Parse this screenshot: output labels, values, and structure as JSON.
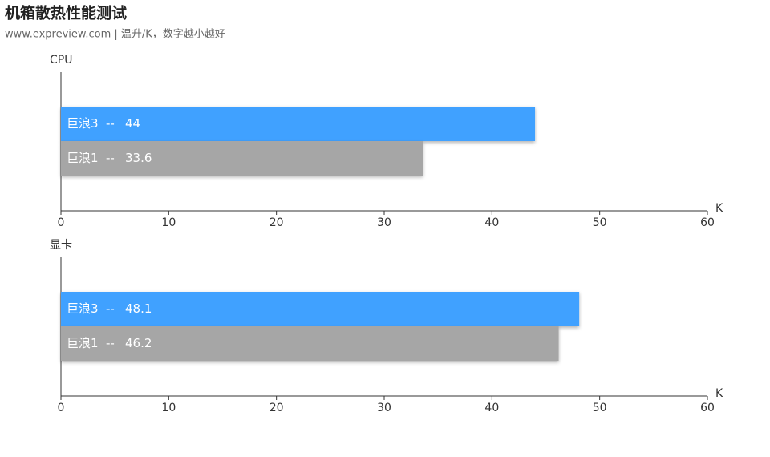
{
  "title": "机箱散热性能测试",
  "subtitle": "www.expreview.com | 温升/K，数字越小越好",
  "chart_data": [
    {
      "type": "barh",
      "title": "CPU",
      "xlabel": "K",
      "label_separator": "--",
      "categories": [
        null
      ],
      "series": [
        {
          "name": "巨浪3",
          "color": "#3fa1ff",
          "values": [
            44
          ]
        },
        {
          "name": "巨浪1",
          "color": "#a6a6a6",
          "values": [
            33.6
          ]
        }
      ],
      "xlim": [
        0,
        60
      ],
      "xticks": [
        0,
        10,
        20,
        30,
        40,
        50,
        60
      ]
    },
    {
      "type": "barh",
      "title": "显卡",
      "xlabel": "K",
      "label_separator": "--",
      "categories": [
        null
      ],
      "series": [
        {
          "name": "巨浪3",
          "color": "#3fa1ff",
          "values": [
            48.1
          ]
        },
        {
          "name": "巨浪1",
          "color": "#a6a6a6",
          "values": [
            46.2
          ]
        }
      ],
      "xlim": [
        0,
        60
      ],
      "xticks": [
        0,
        10,
        20,
        30,
        40,
        50,
        60
      ]
    }
  ]
}
